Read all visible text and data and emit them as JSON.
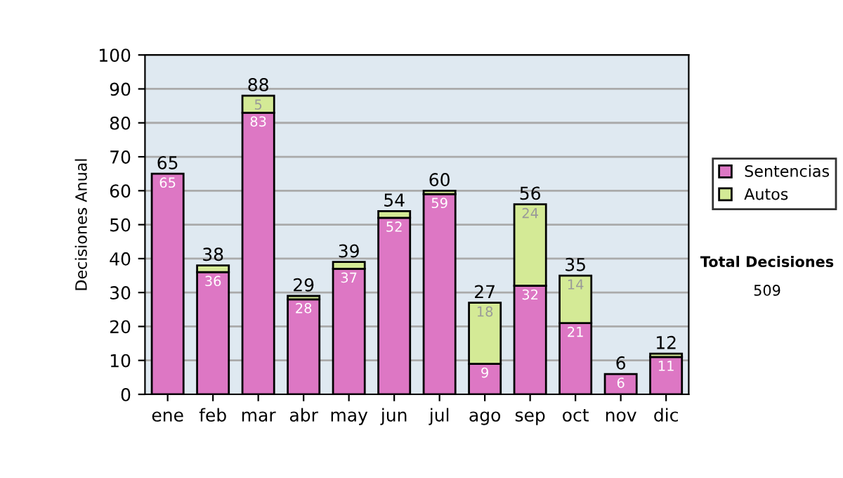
{
  "chart_data": {
    "type": "bar",
    "stacked": true,
    "ylabel": "Decisiones Anual",
    "categories": [
      "ene",
      "feb",
      "mar",
      "abr",
      "may",
      "jun",
      "jul",
      "ago",
      "sep",
      "oct",
      "nov",
      "dic"
    ],
    "series": [
      {
        "name": "Sentencias",
        "color": "#dd77c4",
        "values": [
          65,
          36,
          83,
          28,
          37,
          52,
          59,
          9,
          32,
          21,
          6,
          11
        ],
        "value_labels": [
          "65",
          "36",
          "83",
          "28",
          "37",
          "52",
          "59",
          "9",
          "32",
          "21",
          "6",
          "11"
        ]
      },
      {
        "name": "Autos",
        "color": "#d4ea96",
        "values": [
          null,
          2,
          5,
          1,
          2,
          2,
          1,
          18,
          24,
          14,
          null,
          1
        ],
        "value_labels": [
          null,
          null,
          "5",
          null,
          null,
          null,
          null,
          "18",
          "24",
          "14",
          null,
          null
        ]
      }
    ],
    "totals": [
      "65",
      "38",
      "88",
      "29",
      "39",
      "54",
      "60",
      "27",
      "56",
      "35",
      "6",
      "12"
    ],
    "ylim": [
      0,
      100
    ],
    "yticks": [
      0,
      10,
      20,
      30,
      40,
      50,
      60,
      70,
      80,
      90,
      100
    ],
    "grid": "y",
    "legend": "right",
    "annotations": [
      "Total Decisiones",
      "509"
    ]
  }
}
